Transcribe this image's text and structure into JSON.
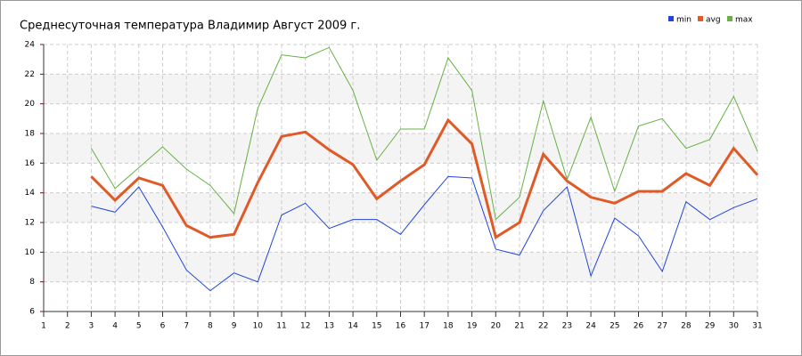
{
  "chart_data": {
    "type": "line",
    "title": "Среднесуточная температура Владимир  Август 2009 г.",
    "x": [
      1,
      2,
      3,
      4,
      5,
      6,
      7,
      8,
      9,
      10,
      11,
      12,
      13,
      14,
      15,
      16,
      17,
      18,
      19,
      20,
      21,
      22,
      23,
      24,
      25,
      26,
      27,
      28,
      29,
      30,
      31
    ],
    "xlim": [
      1,
      31
    ],
    "xticks": [
      1,
      2,
      3,
      4,
      5,
      6,
      7,
      8,
      9,
      10,
      11,
      12,
      13,
      14,
      15,
      16,
      17,
      18,
      19,
      20,
      21,
      22,
      23,
      24,
      25,
      26,
      27,
      28,
      29,
      30,
      31
    ],
    "ylim": [
      6,
      24
    ],
    "yticks": [
      6,
      8,
      10,
      12,
      14,
      16,
      18,
      20,
      22,
      24
    ],
    "grid": true,
    "legend": "top-right",
    "series": [
      {
        "name": "min",
        "color": "#2244dd",
        "width": 1,
        "values": [
          null,
          null,
          13.1,
          12.7,
          14.4,
          11.7,
          8.8,
          7.4,
          8.6,
          8.0,
          12.5,
          13.3,
          11.6,
          12.2,
          12.2,
          11.2,
          13.2,
          15.1,
          15.0,
          10.2,
          9.8,
          12.8,
          14.4,
          8.4,
          12.3,
          11.1,
          8.7,
          13.4,
          12.2,
          13.0,
          13.6
        ]
      },
      {
        "name": "avg",
        "color": "#e05a28",
        "width": 3,
        "values": [
          null,
          null,
          15.1,
          13.5,
          15.0,
          14.5,
          11.8,
          11.0,
          11.2,
          14.7,
          17.8,
          18.1,
          16.9,
          15.9,
          13.6,
          14.8,
          15.9,
          18.9,
          17.3,
          11.0,
          12.0,
          16.6,
          14.8,
          13.7,
          13.3,
          14.1,
          14.1,
          15.3,
          14.5,
          17.0,
          15.2
        ]
      },
      {
        "name": "max",
        "color": "#66b044",
        "width": 1,
        "values": [
          null,
          null,
          17.0,
          14.3,
          15.7,
          17.1,
          15.6,
          14.5,
          12.6,
          19.7,
          23.3,
          23.1,
          23.8,
          20.9,
          16.2,
          18.3,
          18.3,
          23.1,
          20.9,
          12.2,
          13.7,
          20.2,
          14.9,
          19.1,
          14.1,
          18.5,
          19.0,
          17.0,
          17.6,
          20.5,
          16.8
        ]
      }
    ]
  }
}
